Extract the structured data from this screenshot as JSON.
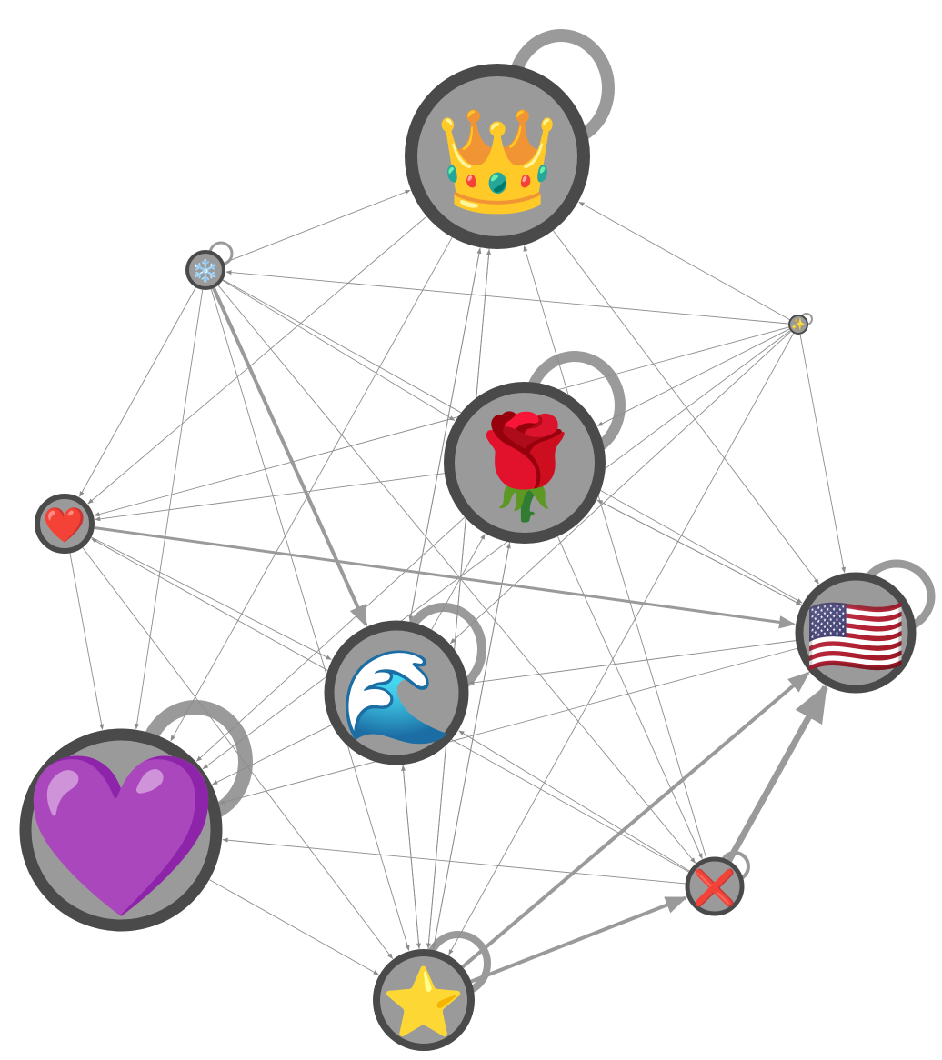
{
  "graph": {
    "nodes": [
      {
        "id": "crown",
        "emoji": "👑",
        "icon": "crown-icon",
        "self_loop": true
      },
      {
        "id": "snowflake",
        "emoji": "❄️",
        "icon": "snowflake-icon",
        "self_loop": true
      },
      {
        "id": "sparkles",
        "emoji": "✨",
        "icon": "sparkles-icon",
        "self_loop": true
      },
      {
        "id": "rose",
        "emoji": "🌹",
        "icon": "rose-icon",
        "self_loop": true
      },
      {
        "id": "red-heart",
        "emoji": "❤️",
        "icon": "red-heart-icon",
        "self_loop": false
      },
      {
        "id": "us-flag",
        "emoji": "🇺🇸",
        "icon": "us-flag-icon",
        "self_loop": true
      },
      {
        "id": "wave",
        "emoji": "🌊",
        "icon": "water-wave-icon",
        "self_loop": true
      },
      {
        "id": "purple-heart",
        "emoji": "💜",
        "icon": "purple-heart-icon",
        "self_loop": true
      },
      {
        "id": "cross-mark",
        "emoji": "❌",
        "icon": "cross-mark-icon",
        "self_loop": true
      },
      {
        "id": "star",
        "emoji": "⭐",
        "icon": "star-icon",
        "self_loop": true
      }
    ],
    "edges": [
      [
        "snowflake",
        "crown"
      ],
      [
        "sparkles",
        "crown"
      ],
      [
        "sparkles",
        "snowflake"
      ],
      [
        "snowflake",
        "rose"
      ],
      [
        "snowflake",
        "wave"
      ],
      [
        "snowflake",
        "red-heart"
      ],
      [
        "snowflake",
        "purple-heart"
      ],
      [
        "snowflake",
        "star"
      ],
      [
        "snowflake",
        "us-flag"
      ],
      [
        "snowflake",
        "cross-mark"
      ],
      [
        "sparkles",
        "rose"
      ],
      [
        "sparkles",
        "red-heart"
      ],
      [
        "sparkles",
        "wave"
      ],
      [
        "sparkles",
        "purple-heart"
      ],
      [
        "sparkles",
        "us-flag"
      ],
      [
        "sparkles",
        "star"
      ],
      [
        "crown",
        "red-heart"
      ],
      [
        "crown",
        "purple-heart"
      ],
      [
        "crown",
        "us-flag"
      ],
      [
        "crown",
        "wave"
      ],
      [
        "star",
        "crown"
      ],
      [
        "wave",
        "crown"
      ],
      [
        "cross-mark",
        "crown"
      ],
      [
        "rose",
        "red-heart"
      ],
      [
        "rose",
        "us-flag"
      ],
      [
        "rose",
        "purple-heart"
      ],
      [
        "rose",
        "cross-mark"
      ],
      [
        "star",
        "rose"
      ],
      [
        "wave",
        "rose"
      ],
      [
        "red-heart",
        "us-flag"
      ],
      [
        "red-heart",
        "wave"
      ],
      [
        "red-heart",
        "purple-heart"
      ],
      [
        "red-heart",
        "star"
      ],
      [
        "cross-mark",
        "red-heart"
      ],
      [
        "us-flag",
        "wave"
      ],
      [
        "us-flag",
        "purple-heart"
      ],
      [
        "us-flag",
        "rose"
      ],
      [
        "star",
        "us-flag"
      ],
      [
        "cross-mark",
        "us-flag"
      ],
      [
        "wave",
        "purple-heart"
      ],
      [
        "wave",
        "star"
      ],
      [
        "cross-mark",
        "wave"
      ],
      [
        "star",
        "wave"
      ],
      [
        "purple-heart",
        "star"
      ],
      [
        "cross-mark",
        "purple-heart"
      ],
      [
        "star",
        "cross-mark"
      ],
      [
        "cross-mark",
        "star"
      ],
      [
        "us-flag",
        "star"
      ],
      [
        "rose",
        "star"
      ],
      [
        "crown",
        "star"
      ]
    ],
    "colors": {
      "node_fill": "#9a9a9a",
      "node_stroke": "#4a4a4a",
      "edge": "#8c8c8c"
    }
  }
}
